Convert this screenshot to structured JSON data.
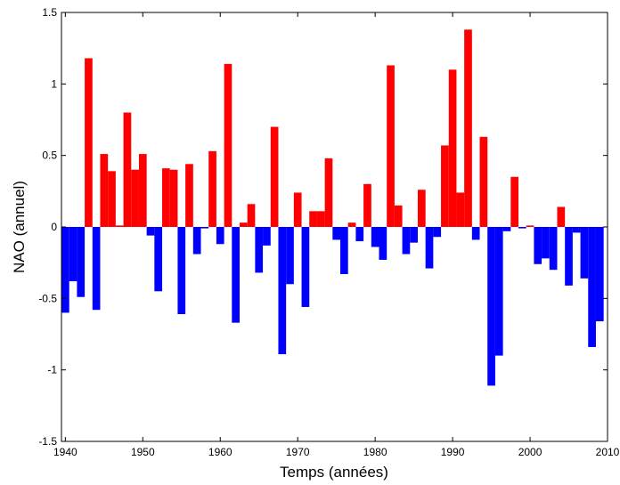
{
  "chart_data": {
    "type": "bar",
    "x_label": "Temps (années)",
    "y_label": "NAO (annuel)",
    "x": [
      1940,
      1941,
      1942,
      1943,
      1944,
      1945,
      1946,
      1947,
      1948,
      1949,
      1950,
      1951,
      1952,
      1953,
      1954,
      1955,
      1956,
      1957,
      1958,
      1959,
      1960,
      1961,
      1962,
      1963,
      1964,
      1965,
      1966,
      1967,
      1968,
      1969,
      1970,
      1971,
      1972,
      1973,
      1974,
      1975,
      1976,
      1977,
      1978,
      1979,
      1980,
      1981,
      1982,
      1983,
      1984,
      1985,
      1986,
      1987,
      1988,
      1989,
      1990,
      1991,
      1992,
      1993,
      1994,
      1995,
      1996,
      1997,
      1998,
      1999,
      2000,
      2001,
      2002,
      2003,
      2004,
      2005,
      2006,
      2007,
      2008,
      2009
    ],
    "values": [
      -0.6,
      -0.38,
      -0.49,
      1.18,
      -0.58,
      0.51,
      0.39,
      0.01,
      0.8,
      0.4,
      0.51,
      -0.06,
      -0.45,
      0.41,
      0.4,
      -0.61,
      0.44,
      -0.19,
      -0.01,
      0.53,
      -0.12,
      1.14,
      -0.67,
      0.03,
      0.16,
      -0.32,
      -0.13,
      0.7,
      -0.89,
      -0.4,
      0.24,
      -0.56,
      0.11,
      0.11,
      0.48,
      -0.09,
      -0.33,
      0.03,
      -0.1,
      0.3,
      -0.14,
      -0.23,
      1.13,
      0.15,
      -0.19,
      -0.11,
      0.26,
      -0.29,
      -0.07,
      0.57,
      1.1,
      0.24,
      1.38,
      -0.09,
      0.63,
      -1.11,
      -0.9,
      -0.03,
      0.35,
      -0.01,
      0.01,
      -0.26,
      -0.22,
      -0.3,
      0.14,
      -0.41,
      -0.04,
      -0.36,
      -0.84,
      -0.66
    ],
    "positive_color": "#ff0000",
    "negative_color": "#0000ff",
    "xlim": [
      1939.5,
      2010
    ],
    "xticks": [
      1940,
      1950,
      1960,
      1970,
      1980,
      1990,
      2000,
      2010
    ],
    "ylim": [
      -1.5,
      1.5
    ],
    "yticks": [
      -1.5,
      -1,
      -0.5,
      0,
      0.5,
      1,
      1.5
    ]
  }
}
